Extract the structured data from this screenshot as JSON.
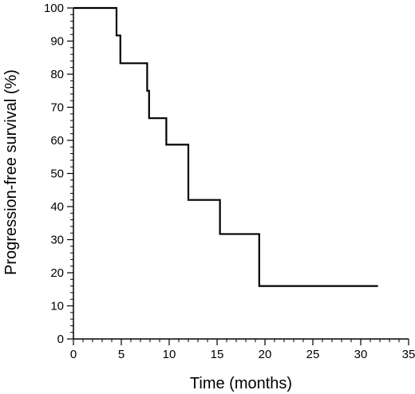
{
  "chart_data": {
    "type": "line",
    "step": "post",
    "xlabel": "Time (months)",
    "ylabel": "Progression-free survival (%)",
    "xlim": [
      0,
      35
    ],
    "ylim": [
      0,
      100
    ],
    "x_major_ticks": [
      0,
      5,
      10,
      15,
      20,
      25,
      30,
      35
    ],
    "y_major_ticks": [
      0,
      10,
      20,
      30,
      40,
      50,
      60,
      70,
      80,
      90,
      100
    ],
    "x_minor_step": 1,
    "y_minor_step": 2,
    "grid": false,
    "series": [
      {
        "x": [
          0,
          4.5,
          4.9,
          7.7,
          7.9,
          9.7,
          12.0,
          15.3,
          19.4,
          31.8
        ],
        "y": [
          100,
          91.7,
          83.3,
          75.0,
          66.7,
          58.7,
          42.0,
          31.7,
          16.0,
          16.0
        ]
      }
    ]
  }
}
